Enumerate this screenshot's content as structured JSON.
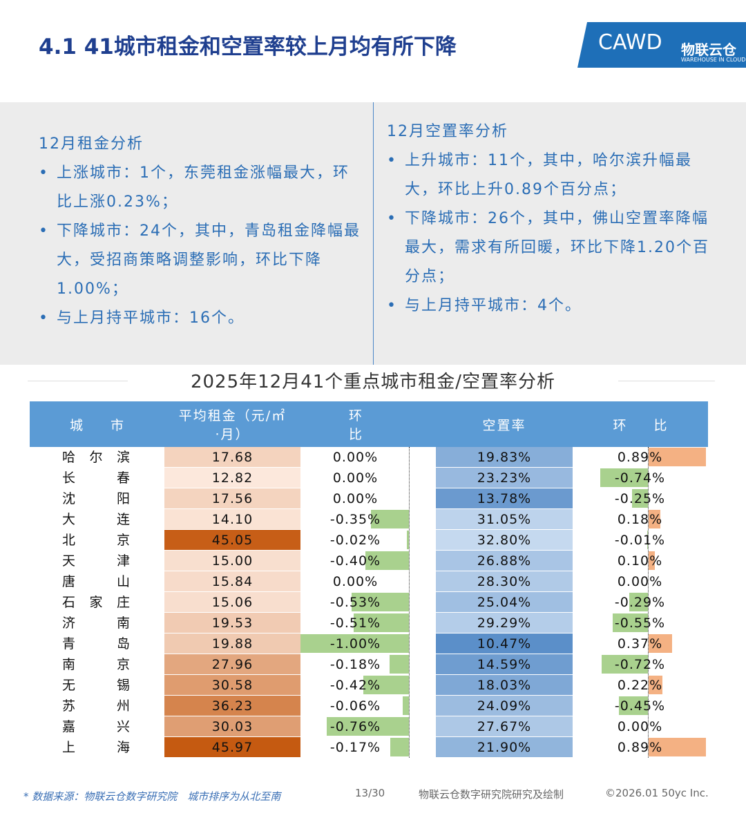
{
  "header": {
    "title": "4.1 41城市租金和空置率较上月均有所下降",
    "logo_main": "CAWD",
    "logo_sub": "物联云仓",
    "logo_en": "WAREHOUSE IN CLOUD"
  },
  "panels": [
    {
      "heading": "12月租金分析",
      "items": [
        "上涨城市：1个，东莞租金涨幅最大，环比上涨0.23%；",
        "下降城市：24个，其中，青岛租金降幅最大，受招商策略调整影响，环比下降1.00%；",
        "与上月持平城市：16个。"
      ]
    },
    {
      "heading": "12月空置率分析",
      "items": [
        "上升城市：11个，其中，哈尔滨升幅最大，环比上升0.89个百分点；",
        "下降城市：26个，其中，佛山空置率降幅最大，需求有所回暖，环比下降1.20个百分点；",
        "与上月持平城市：4个。"
      ]
    }
  ],
  "table": {
    "title": "2025年12月41个重点城市租金/空置率分析",
    "columns": [
      "城市",
      "平均租金（元/㎡·月）",
      "环比",
      "空置率",
      "环比"
    ],
    "rows": [
      [
        "哈尔滨",
        "17.68",
        "0.00%",
        "19.83%",
        "0.89%"
      ],
      [
        "长春",
        "12.82",
        "0.00%",
        "23.23%",
        "-0.74%"
      ],
      [
        "沈阳",
        "17.56",
        "0.00%",
        "13.78%",
        "-0.25%"
      ],
      [
        "大连",
        "14.10",
        "-0.35%",
        "31.05%",
        "0.18%"
      ],
      [
        "北京",
        "45.05",
        "-0.02%",
        "32.80%",
        "-0.01%"
      ],
      [
        "天津",
        "15.00",
        "-0.40%",
        "26.88%",
        "0.10%"
      ],
      [
        "唐山",
        "15.84",
        "0.00%",
        "28.30%",
        "0.00%"
      ],
      [
        "石家庄",
        "15.06",
        "-0.53%",
        "25.04%",
        "-0.29%"
      ],
      [
        "济南",
        "19.53",
        "-0.51%",
        "29.29%",
        "-0.55%"
      ],
      [
        "青岛",
        "19.88",
        "-1.00%",
        "10.47%",
        "0.37%"
      ],
      [
        "南京",
        "27.96",
        "-0.18%",
        "14.59%",
        "-0.72%"
      ],
      [
        "无锡",
        "30.58",
        "-0.42%",
        "18.03%",
        "0.22%"
      ],
      [
        "苏州",
        "36.23",
        "-0.06%",
        "24.09%",
        "-0.45%"
      ],
      [
        "嘉兴",
        "30.03",
        "-0.76%",
        "27.67%",
        "0.00%"
      ],
      [
        "上海",
        "45.97",
        "-0.17%",
        "21.90%",
        "0.89%"
      ]
    ]
  },
  "footer": {
    "source": "* 数据来源：物联云仓数字研究院　城市排序为从北至南",
    "page": "13/30",
    "credit": "物联云仓数字研究院研究及绘制",
    "copyright": "©2026.01 50yc Inc."
  }
}
